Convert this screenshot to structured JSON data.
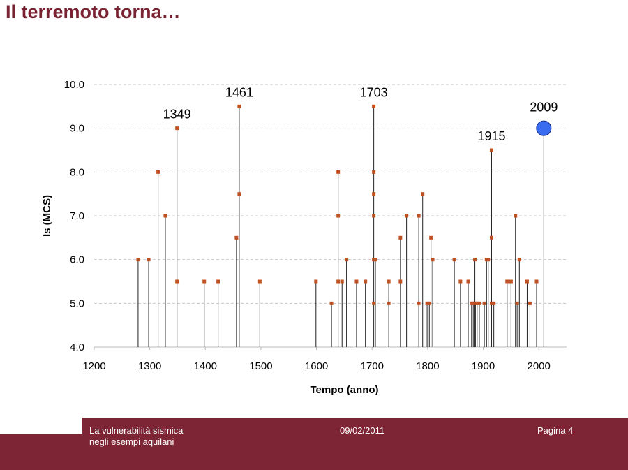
{
  "slide": {
    "title": "Il terremoto torna…"
  },
  "footer": {
    "left_line1": "La vulnerabilità sismica",
    "left_line2": "negli esempi aquilani",
    "date": "09/02/2011",
    "page": "Pagina 4"
  },
  "colors": {
    "title": "#7a2232",
    "footer": "#7e2535",
    "marker": "#c0501f",
    "highlight": "#3a6cf0",
    "line": "#222222",
    "grid": "#c8c8c8"
  },
  "chart_data": {
    "type": "scatter",
    "style": "stem",
    "xlabel": "Tempo (anno)",
    "ylabel": "Is (MCS)",
    "xlim": [
      1200,
      2050
    ],
    "ylim": [
      4.0,
      10.0
    ],
    "xticks": [
      1200,
      1300,
      1400,
      1500,
      1600,
      1700,
      1800,
      1900,
      2000
    ],
    "yticks": [
      "4.0",
      "5.0",
      "6.0",
      "7.0",
      "8.0",
      "9.0",
      "10.0"
    ],
    "grid": "horizontal-dashed",
    "points": [
      {
        "x": 1279,
        "y": 6.0
      },
      {
        "x": 1298,
        "y": 6.0
      },
      {
        "x": 1315,
        "y": 8.0
      },
      {
        "x": 1328,
        "y": 7.0
      },
      {
        "x": 1349,
        "y": 9.0
      },
      {
        "x": 1349,
        "y": 5.5
      },
      {
        "x": 1398,
        "y": 5.5
      },
      {
        "x": 1423,
        "y": 5.5
      },
      {
        "x": 1456,
        "y": 6.5
      },
      {
        "x": 1461,
        "y": 9.5
      },
      {
        "x": 1461,
        "y": 7.5
      },
      {
        "x": 1498,
        "y": 5.5
      },
      {
        "x": 1599,
        "y": 5.5
      },
      {
        "x": 1627,
        "y": 5.0
      },
      {
        "x": 1639,
        "y": 8.0
      },
      {
        "x": 1639,
        "y": 7.0
      },
      {
        "x": 1639,
        "y": 5.5
      },
      {
        "x": 1646,
        "y": 5.5
      },
      {
        "x": 1654,
        "y": 6.0
      },
      {
        "x": 1672,
        "y": 5.5
      },
      {
        "x": 1688,
        "y": 5.5
      },
      {
        "x": 1703,
        "y": 9.5
      },
      {
        "x": 1703,
        "y": 8.0
      },
      {
        "x": 1703,
        "y": 7.5
      },
      {
        "x": 1703,
        "y": 7.0
      },
      {
        "x": 1703,
        "y": 6.0
      },
      {
        "x": 1703,
        "y": 5.0
      },
      {
        "x": 1706,
        "y": 6.0
      },
      {
        "x": 1730,
        "y": 5.5
      },
      {
        "x": 1730,
        "y": 5.0
      },
      {
        "x": 1751,
        "y": 6.5
      },
      {
        "x": 1751,
        "y": 5.5
      },
      {
        "x": 1762,
        "y": 7.0
      },
      {
        "x": 1784,
        "y": 7.0
      },
      {
        "x": 1784,
        "y": 5.0
      },
      {
        "x": 1791,
        "y": 7.5
      },
      {
        "x": 1799,
        "y": 5.0
      },
      {
        "x": 1803,
        "y": 5.0
      },
      {
        "x": 1806,
        "y": 6.5
      },
      {
        "x": 1809,
        "y": 6.0
      },
      {
        "x": 1848,
        "y": 6.0
      },
      {
        "x": 1859,
        "y": 5.5
      },
      {
        "x": 1873,
        "y": 5.5
      },
      {
        "x": 1879,
        "y": 5.0
      },
      {
        "x": 1882,
        "y": 5.0
      },
      {
        "x": 1885,
        "y": 6.0
      },
      {
        "x": 1886,
        "y": 5.0
      },
      {
        "x": 1889,
        "y": 5.0
      },
      {
        "x": 1893,
        "y": 5.0
      },
      {
        "x": 1902,
        "y": 5.0
      },
      {
        "x": 1906,
        "y": 6.0
      },
      {
        "x": 1909,
        "y": 6.0
      },
      {
        "x": 1915,
        "y": 8.5
      },
      {
        "x": 1915,
        "y": 6.5
      },
      {
        "x": 1915,
        "y": 5.0
      },
      {
        "x": 1919,
        "y": 5.0
      },
      {
        "x": 1943,
        "y": 5.5
      },
      {
        "x": 1950,
        "y": 5.5
      },
      {
        "x": 1958,
        "y": 7.0
      },
      {
        "x": 1961,
        "y": 5.0
      },
      {
        "x": 1965,
        "y": 6.0
      },
      {
        "x": 1979,
        "y": 5.5
      },
      {
        "x": 1984,
        "y": 5.0
      },
      {
        "x": 1996,
        "y": 5.5
      }
    ],
    "highlight": {
      "x": 2009,
      "y": 9.0
    },
    "annotations": [
      {
        "text": "1349",
        "x": 1349,
        "y": 9.0
      },
      {
        "text": "1461",
        "x": 1461,
        "y": 9.5
      },
      {
        "text": "1703",
        "x": 1703,
        "y": 9.5
      },
      {
        "text": "1915",
        "x": 1915,
        "y": 8.5
      },
      {
        "text": "2009",
        "x": 2009,
        "y": 9.0
      }
    ]
  }
}
